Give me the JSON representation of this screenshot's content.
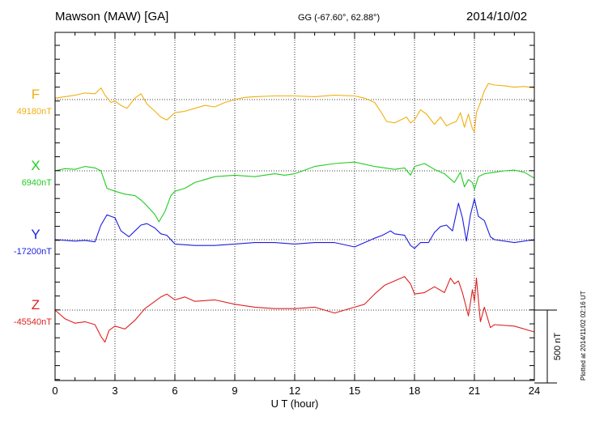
{
  "header": {
    "station": "Mawson (MAW)  [GA]",
    "coords": "GG (-67.60°,  62.88°)",
    "date": "2014/10/02"
  },
  "footer": {
    "plotted": "Plotted at 2014/11/02 02:16 UT"
  },
  "chart_data": {
    "type": "line",
    "title": "",
    "xlabel": "U T (hour)",
    "xlim": [
      0,
      24
    ],
    "xticks": [
      "0",
      "3",
      "6",
      "9",
      "12",
      "15",
      "18",
      "21",
      "24"
    ],
    "grid": true,
    "scale_label": "500 nT",
    "scale_nT": 500,
    "series": [
      {
        "name": "F",
        "baseline_label": "49180nT",
        "color": "#f0b010",
        "x": [
          0,
          0.5,
          1,
          1.5,
          2,
          2.3,
          2.5,
          2.8,
          3,
          3.3,
          3.6,
          4,
          4.3,
          4.6,
          5,
          5.3,
          5.6,
          6,
          6.5,
          7,
          7.5,
          8,
          8.5,
          9,
          9.5,
          10,
          11,
          12,
          13,
          14,
          15,
          15.5,
          16,
          16.3,
          16.6,
          17,
          17.3,
          17.6,
          17.8,
          18,
          18.3,
          18.6,
          19,
          19.3,
          19.6,
          19.9,
          20.1,
          20.3,
          20.5,
          20.7,
          20.9,
          21,
          21.1,
          21.3,
          21.5,
          21.7,
          22,
          22.5,
          23,
          23.5,
          24
        ],
        "y": [
          10,
          20,
          30,
          45,
          40,
          80,
          30,
          -20,
          -10,
          -40,
          -60,
          10,
          40,
          -30,
          -80,
          -120,
          -140,
          -90,
          -80,
          -60,
          -40,
          -50,
          -20,
          0,
          15,
          20,
          25,
          25,
          20,
          30,
          25,
          10,
          -20,
          -80,
          -150,
          -160,
          -140,
          -120,
          -160,
          -140,
          -70,
          -100,
          -170,
          -120,
          -180,
          -160,
          -150,
          -90,
          -190,
          -100,
          -200,
          -220,
          -90,
          -20,
          60,
          110,
          100,
          95,
          85,
          90,
          80
        ]
      },
      {
        "name": "X",
        "baseline_label": "6940nT",
        "color": "#22cc22",
        "x": [
          0,
          0.5,
          1,
          1.5,
          2,
          2.3,
          2.6,
          3,
          3.5,
          4,
          4.3,
          4.6,
          5,
          5.2,
          5.5,
          5.8,
          6,
          6.5,
          7,
          7.5,
          8,
          9,
          10,
          11,
          11.5,
          12,
          13,
          14,
          15,
          16,
          17,
          17.5,
          17.8,
          18,
          18.5,
          19,
          19.5,
          20,
          20.3,
          20.5,
          20.7,
          20.9,
          21,
          21.2,
          21.5,
          22,
          22.5,
          23,
          23.5,
          24
        ],
        "y": [
          0,
          15,
          10,
          30,
          20,
          0,
          -120,
          -140,
          -160,
          -170,
          -200,
          -240,
          -300,
          -350,
          -280,
          -170,
          -140,
          -120,
          -80,
          -60,
          -40,
          -30,
          -40,
          -20,
          -30,
          -20,
          30,
          50,
          60,
          30,
          10,
          20,
          -30,
          30,
          50,
          10,
          -20,
          -80,
          -10,
          -110,
          -60,
          -80,
          -130,
          -40,
          -20,
          -10,
          0,
          5,
          -10,
          -50
        ]
      },
      {
        "name": "Y",
        "baseline_label": "-17200nT",
        "color": "#1c1ce0",
        "x": [
          0,
          1,
          1.5,
          2,
          2.3,
          2.6,
          3,
          3.3,
          3.7,
          4,
          4.3,
          4.6,
          5,
          5.3,
          5.6,
          6,
          7,
          8,
          9,
          10,
          11,
          12,
          13,
          14,
          15,
          15.5,
          16,
          16.4,
          16.8,
          17,
          17.5,
          17.8,
          18,
          18.3,
          18.7,
          19,
          19.3,
          19.6,
          19.9,
          20.2,
          20.4,
          20.6,
          20.8,
          21,
          21.2,
          21.5,
          21.8,
          22,
          23,
          24
        ],
        "y": [
          0,
          -10,
          -5,
          -15,
          100,
          170,
          150,
          60,
          20,
          60,
          100,
          110,
          80,
          40,
          30,
          -30,
          -40,
          -40,
          -30,
          -20,
          -20,
          -30,
          -20,
          -20,
          -50,
          -20,
          10,
          30,
          60,
          40,
          30,
          -40,
          -60,
          -20,
          -20,
          50,
          90,
          100,
          60,
          250,
          150,
          -10,
          170,
          280,
          160,
          130,
          20,
          0,
          -20,
          0
        ]
      },
      {
        "name": "Z",
        "baseline_label": "-45540nT",
        "color": "#e02020",
        "x": [
          0,
          0.5,
          1,
          1.5,
          2,
          2.3,
          2.5,
          2.7,
          3,
          3.5,
          4,
          4.5,
          5,
          5.3,
          5.6,
          6,
          6.5,
          7,
          8,
          9,
          10,
          11,
          12,
          13,
          14,
          15,
          15.5,
          16,
          16.5,
          17,
          17.5,
          17.8,
          18,
          18.5,
          19,
          19.5,
          19.8,
          20,
          20.2,
          20.4,
          20.7,
          20.9,
          21,
          21.1,
          21.3,
          21.5,
          21.8,
          22,
          23,
          24
        ],
        "y": [
          0,
          -60,
          -90,
          -80,
          -100,
          -180,
          -220,
          -140,
          -110,
          -130,
          -70,
          10,
          60,
          90,
          110,
          70,
          90,
          60,
          70,
          40,
          20,
          10,
          10,
          20,
          -20,
          20,
          40,
          110,
          170,
          200,
          230,
          180,
          110,
          120,
          160,
          120,
          220,
          180,
          200,
          120,
          -40,
          140,
          60,
          220,
          -80,
          20,
          -120,
          -100,
          -110,
          -150
        ]
      }
    ]
  }
}
